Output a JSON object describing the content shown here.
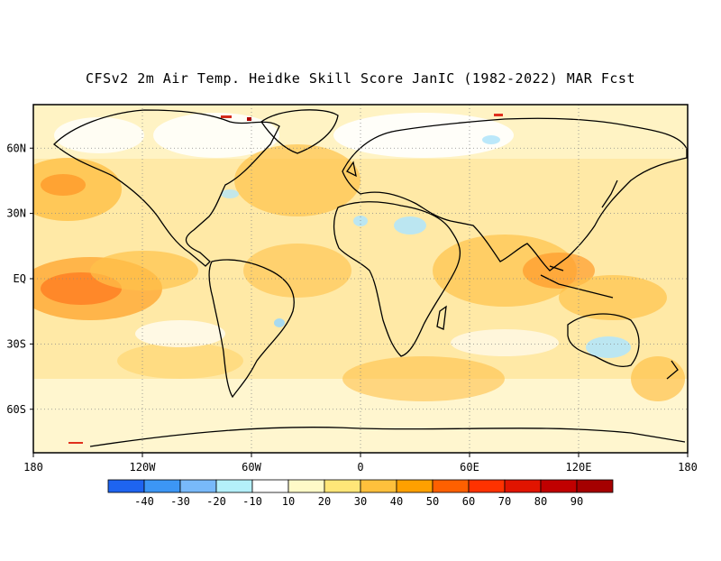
{
  "title": "CFSv2 2m Air Temp. Heidke Skill Score JanIC (1982-2022) MAR Fcst",
  "map": {
    "lat_labels": [
      "60N",
      "30N",
      "EQ",
      "30S",
      "60S"
    ],
    "lat_values": [
      60,
      30,
      0,
      -30,
      -60
    ],
    "lon_labels": [
      "180",
      "120W",
      "60W",
      "0",
      "60E",
      "120E",
      "180"
    ],
    "lon_values": [
      -180,
      -120,
      -60,
      0,
      60,
      120,
      180
    ],
    "lon_range": [
      -180,
      180
    ],
    "lat_range": [
      -80,
      80
    ],
    "grid": "dotted"
  },
  "colorbar": {
    "labels": [
      "-40",
      "-30",
      "-20",
      "-10",
      "10",
      "20",
      "30",
      "40",
      "50",
      "60",
      "70",
      "80",
      "90"
    ],
    "colors": [
      "#1e64f0",
      "#3c96f5",
      "#78b9fa",
      "#b4f0fa",
      "#ffffff",
      "#fffac8",
      "#ffe678",
      "#ffc03c",
      "#ffa000",
      "#ff6000",
      "#ff3200",
      "#e11400",
      "#c00000",
      "#a50000"
    ]
  }
}
